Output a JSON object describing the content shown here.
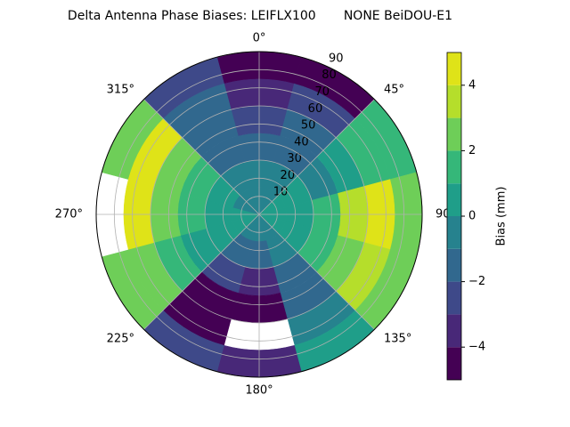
{
  "chart_data": {
    "type": "polar_contour",
    "title": "Delta Antenna Phase Biases: LEIFLX100       NONE BeiDOU-E1",
    "theta_ticks": [
      {
        "value": 0,
        "label": "0°"
      },
      {
        "value": 45,
        "label": "45°"
      },
      {
        "value": 90,
        "label": "90°"
      },
      {
        "value": 135,
        "label": "135°"
      },
      {
        "value": 180,
        "label": "180°"
      },
      {
        "value": 225,
        "label": "225°"
      },
      {
        "value": 270,
        "label": "270°"
      },
      {
        "value": 315,
        "label": "315°"
      }
    ],
    "rlim": [
      0,
      90
    ],
    "rticks": [
      10,
      20,
      30,
      40,
      50,
      60,
      70,
      80,
      90
    ],
    "azimuths": [
      0,
      30,
      60,
      90,
      120,
      150,
      180,
      210,
      240,
      270,
      300,
      330
    ],
    "radial_bins": [
      0,
      15,
      30,
      45,
      60,
      75,
      90
    ],
    "values": [
      [
        0,
        -0.5,
        -1.5,
        -2,
        -3,
        -4.5
      ],
      [
        0,
        -0.5,
        -1.5,
        -1.5,
        -2.5,
        -4
      ],
      [
        0.5,
        0.5,
        0,
        1,
        2,
        1.5
      ],
      [
        0.5,
        1,
        2,
        3.5,
        4.5,
        3
      ],
      [
        0.5,
        1,
        2,
        3,
        4,
        2.5
      ],
      [
        0,
        -0.5,
        -1.5,
        -1,
        0,
        1
      ],
      [
        0,
        -1.5,
        -3,
        -4.5,
        -5.5,
        -3
      ],
      [
        0,
        -1,
        -2.5,
        -4,
        -4.5,
        -2
      ],
      [
        0.5,
        0.5,
        0.5,
        1.5,
        3,
        2.5
      ],
      [
        0.5,
        1,
        2,
        3,
        4.5,
        5.5
      ],
      [
        0,
        0.5,
        1.5,
        3,
        4.5,
        2.5
      ],
      [
        0,
        -0.5,
        -1,
        -1.5,
        -1,
        -2
      ]
    ],
    "colorbar": {
      "label": "Bias (mm)",
      "levels": [
        -5,
        -4,
        -3,
        -2,
        -1,
        0,
        1,
        2,
        3,
        4,
        5
      ],
      "colors": [
        "#440154",
        "#482878",
        "#3e4989",
        "#31688e",
        "#26828e",
        "#1f9e89",
        "#35b779",
        "#6ece58",
        "#b5de2b",
        "#dfe318"
      ],
      "ticks": [
        {
          "value": -4,
          "label": "−4"
        },
        {
          "value": -2,
          "label": "−2"
        },
        0,
        2,
        4
      ]
    }
  }
}
